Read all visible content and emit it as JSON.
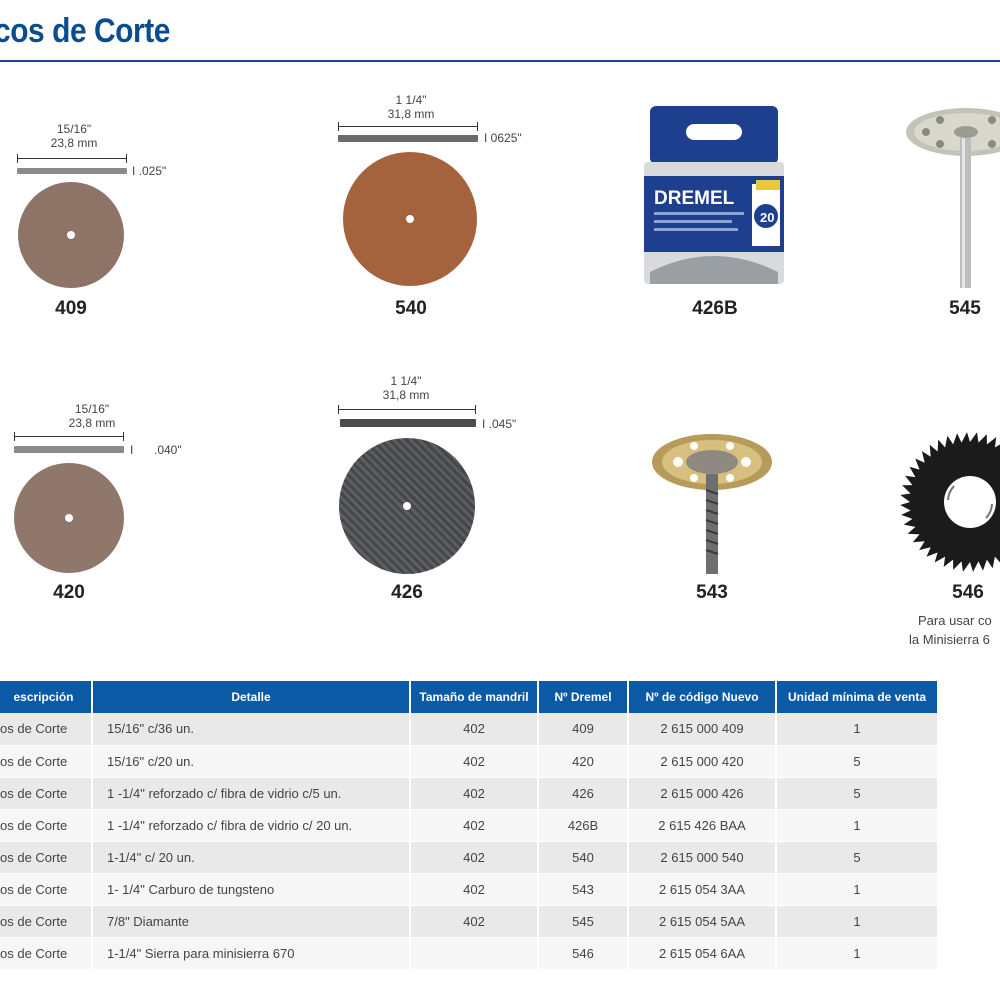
{
  "page": {
    "title": "cos de Corte"
  },
  "products": {
    "p409": {
      "label": "409",
      "dim_inch": "15/16\"",
      "dim_mm": "23,8 mm",
      "thickness": ".025\"",
      "color": "#8d7467"
    },
    "p540": {
      "label": "540",
      "dim_inch": "1 1/4\"",
      "dim_mm": "31,8 mm",
      "thickness": "0625\"",
      "color": "#a4633c"
    },
    "p426B": {
      "label": "426B",
      "brand": "DREMEL",
      "count": "20"
    },
    "p545": {
      "label": "545"
    },
    "p420": {
      "label": "420",
      "dim_inch": "15/16\"",
      "dim_mm": "23,8 mm",
      "thickness": ".040\"",
      "color": "#8f776c"
    },
    "p426": {
      "label": "426",
      "dim_inch": "1 1/4\"",
      "dim_mm": "31,8 mm",
      "thickness": ".045\"",
      "color": "#55575b"
    },
    "p543": {
      "label": "543"
    },
    "p546": {
      "label": "546",
      "note_line1": "Para usar co",
      "note_line2": "la Minisierra 6"
    }
  },
  "table": {
    "headers": [
      "escripción",
      "Detalle",
      "Tamaño de mandril",
      "Nº Dremel",
      "Nº de código Nuevo",
      "Unidad mínima de venta"
    ],
    "rows": [
      {
        "descripcion": "os de Corte",
        "detalle": "15/16\" c/36 un.",
        "mandril": "402",
        "dremel": "409",
        "codigo": "2 615 000 409",
        "unidad": "1"
      },
      {
        "descripcion": "os de Corte",
        "detalle": "15/16\" c/20 un.",
        "mandril": "402",
        "dremel": "420",
        "codigo": "2 615 000 420",
        "unidad": "5"
      },
      {
        "descripcion": "os de Corte",
        "detalle": "1 -1/4\" reforzado c/ fibra de vidrio c/5 un.",
        "mandril": "402",
        "dremel": "426",
        "codigo": "2 615 000 426",
        "unidad": "5"
      },
      {
        "descripcion": "os de Corte",
        "detalle": "1 -1/4\" reforzado c/ fibra de vidrio c/ 20 un.",
        "mandril": "402",
        "dremel": "426B",
        "codigo": "2 615 426 BAA",
        "unidad": "1"
      },
      {
        "descripcion": "os de Corte",
        "detalle": "1-1/4\" c/ 20 un.",
        "mandril": "402",
        "dremel": "540",
        "codigo": "2 615 000 540",
        "unidad": "5"
      },
      {
        "descripcion": "os de Corte",
        "detalle": "1- 1/4\" Carburo de tungsteno",
        "mandril": "402",
        "dremel": "543",
        "codigo": "2 615 054 3AA",
        "unidad": "1"
      },
      {
        "descripcion": "os de Corte",
        "detalle": "7/8\" Diamante",
        "mandril": "402",
        "dremel": "545",
        "codigo": "2 615 054 5AA",
        "unidad": "1"
      },
      {
        "descripcion": "os de Corte",
        "detalle": "1-1/4\" Sierra para minisierra 670",
        "mandril": "",
        "dremel": "546",
        "codigo": "2 615 054 6AA",
        "unidad": "1"
      }
    ]
  }
}
